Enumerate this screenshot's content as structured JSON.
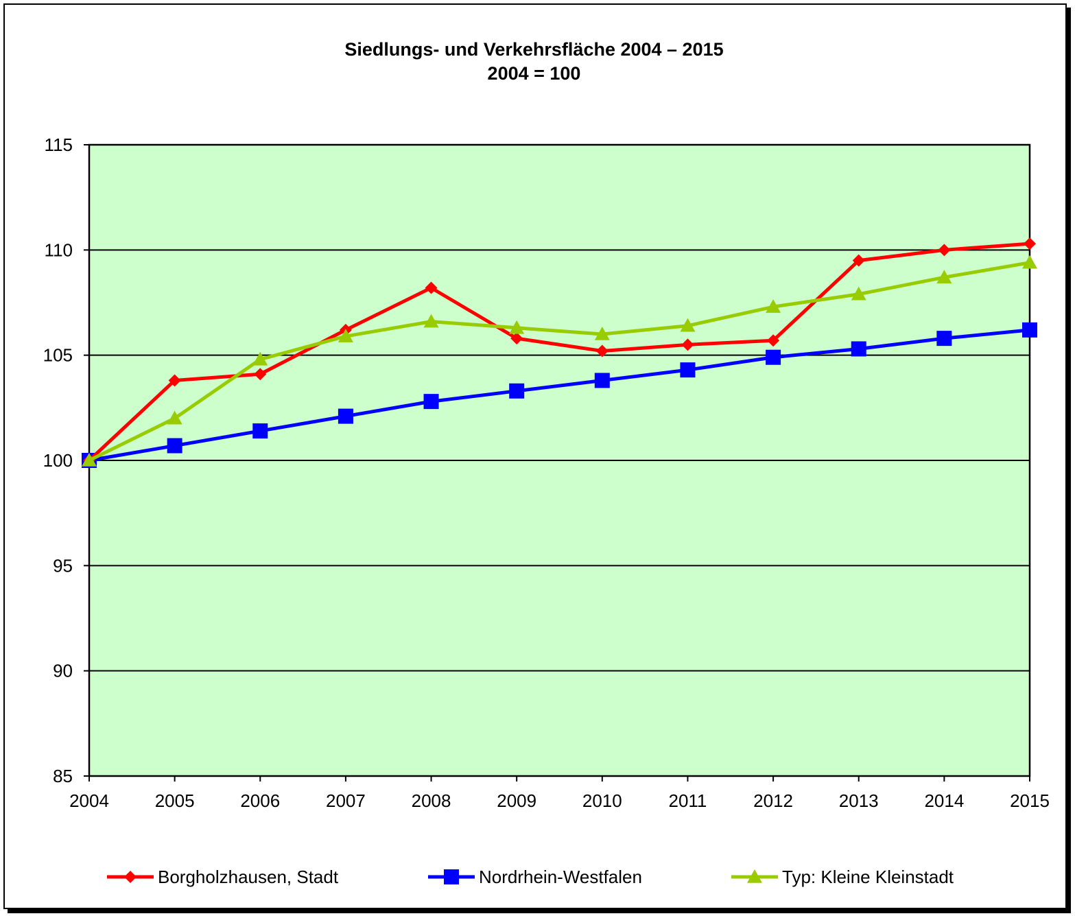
{
  "chart_data": {
    "type": "line",
    "title": "Siedlungs- und Verkehrsfläche 2004 – 2015",
    "subtitle": "2004 = 100",
    "xlabel": "",
    "ylabel": "",
    "x": [
      "2004",
      "2005",
      "2006",
      "2007",
      "2008",
      "2009",
      "2010",
      "2011",
      "2012",
      "2013",
      "2014",
      "2015"
    ],
    "ylim": [
      85,
      115
    ],
    "yticks": [
      85,
      90,
      95,
      100,
      105,
      110,
      115
    ],
    "grid": true,
    "plot_background": "#CCFFCC",
    "legend_placement": "bottom",
    "series": [
      {
        "name": "Borgholzhausen, Stadt",
        "color": "#FF0000",
        "marker": "diamond",
        "values": [
          100,
          103.8,
          104.1,
          106.2,
          108.2,
          105.8,
          105.2,
          105.5,
          105.7,
          109.5,
          110.0,
          110.3
        ]
      },
      {
        "name": "Nordrhein-Westfalen",
        "color": "#0000FF",
        "marker": "square",
        "values": [
          100,
          100.7,
          101.4,
          102.1,
          102.8,
          103.3,
          103.8,
          104.3,
          104.9,
          105.3,
          105.8,
          106.2
        ]
      },
      {
        "name": "Typ: Kleine Kleinstadt",
        "color": "#99CC00",
        "marker": "triangle",
        "values": [
          100,
          102.0,
          104.8,
          105.9,
          106.6,
          106.3,
          106.0,
          106.4,
          107.3,
          107.9,
          108.7,
          109.4
        ]
      }
    ]
  }
}
